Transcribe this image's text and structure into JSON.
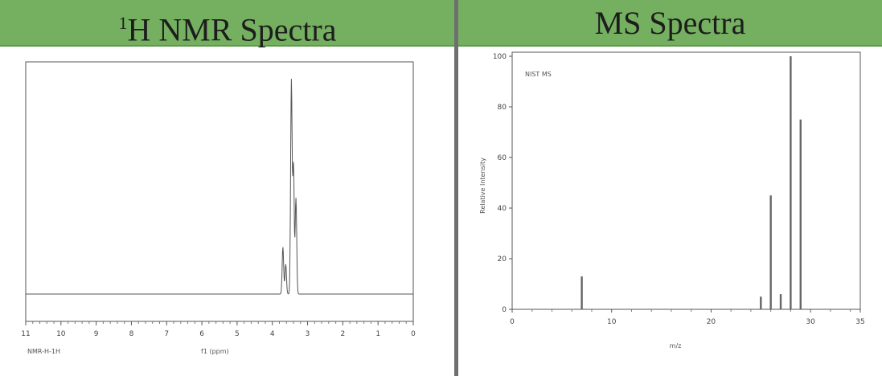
{
  "headers": {
    "nmr_prefix": "1",
    "nmr_title": "H NMR Spectra",
    "ms_title": "MS Spectra"
  },
  "colors": {
    "header_bg": "#74b060",
    "divider": "#6f6f6f",
    "plot_line": "#555555"
  },
  "chart_data": [
    {
      "type": "line",
      "title": "1H NMR Spectra",
      "xlabel": "f1 (ppm)",
      "footnote": "NMR-H-1H",
      "xlim": [
        11,
        0
      ],
      "x_ticks": [
        11,
        10,
        9,
        8,
        7,
        6,
        5,
        4,
        3,
        2,
        1,
        0
      ],
      "peaks": [
        {
          "x": 3.7,
          "y": 0.22
        },
        {
          "x": 3.62,
          "y": 0.14
        },
        {
          "x": 3.46,
          "y": 1.0
        },
        {
          "x": 3.4,
          "y": 0.6
        },
        {
          "x": 3.33,
          "y": 0.45
        }
      ],
      "grid": false
    },
    {
      "type": "bar",
      "title": "MS Spectra",
      "xlabel": "m/z",
      "ylabel": "Relative Intensity",
      "legend_text": "NIST MS",
      "xlim": [
        0,
        35
      ],
      "ylim": [
        0,
        100
      ],
      "x_ticks": [
        0,
        10,
        20,
        30,
        35
      ],
      "y_ticks": [
        0,
        20,
        40,
        60,
        80,
        100
      ],
      "x": [
        7,
        25,
        26,
        27,
        28,
        29
      ],
      "values": [
        13,
        5,
        45,
        6,
        100,
        75
      ],
      "grid": false
    }
  ]
}
